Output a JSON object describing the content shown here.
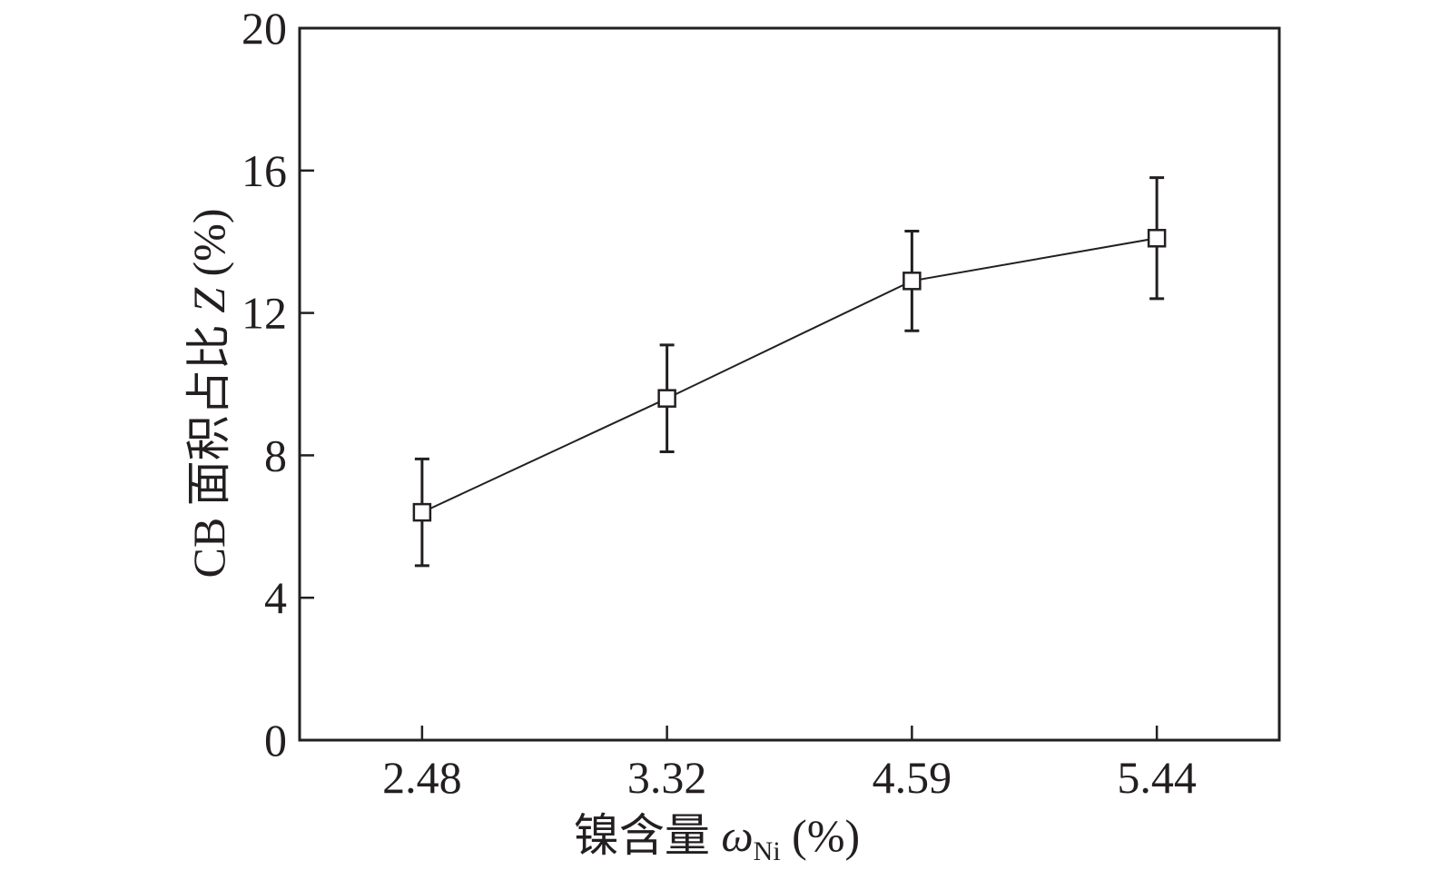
{
  "chart_data": {
    "type": "line",
    "categories": [
      "2.48",
      "3.32",
      "4.59",
      "5.44"
    ],
    "series": [
      {
        "values": [
          6.4,
          9.6,
          12.9,
          14.1
        ],
        "error": [
          1.5,
          1.5,
          1.4,
          1.7
        ]
      }
    ],
    "ylim": [
      0,
      20
    ],
    "yticks": [
      "0",
      "4",
      "8",
      "12",
      "16",
      "20"
    ],
    "xlabel": {
      "main": "镍含量 ",
      "symbol": "ω",
      "subscript": "Ni",
      "unit": " (%)"
    },
    "ylabel": {
      "main": "CB 面积占比 ",
      "symbol": "Z",
      "unit": " (%)"
    },
    "grid": false,
    "marker": "open-square",
    "colors": {
      "ink": "#231f20",
      "marker_fill": "#ffffff"
    }
  }
}
